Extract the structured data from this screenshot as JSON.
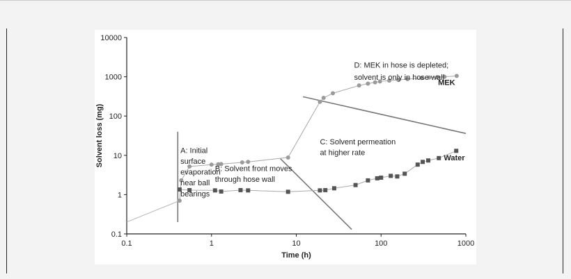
{
  "chart_data": {
    "type": "scatter",
    "title": "",
    "xlabel": "Time (h)",
    "ylabel": "Solvent loss (mg)",
    "xscale": "log",
    "yscale": "log",
    "xlim": [
      0.1,
      1000
    ],
    "ylim": [
      0.1,
      10000
    ],
    "x_ticks": [
      0.1,
      1,
      10,
      100,
      1000
    ],
    "x_tick_labels": [
      "0.1",
      "1",
      "10",
      "100",
      "1000"
    ],
    "y_ticks": [
      0.1,
      1,
      10,
      100,
      1000,
      10000
    ],
    "y_tick_labels": [
      "0.1",
      "1",
      "10",
      "100",
      "1000",
      "10000"
    ],
    "grid": false,
    "series": [
      {
        "name": "MEK",
        "marker": "circle",
        "color": "#9a9a9a",
        "line_color": "#a8a8a8",
        "points": [
          [
            0.42,
            0.7
          ],
          [
            0.44,
            2.3
          ],
          [
            0.55,
            5.2
          ],
          [
            1.0,
            5.8
          ],
          [
            1.2,
            5.9
          ],
          [
            1.3,
            6.0
          ],
          [
            2.3,
            6.6
          ],
          [
            2.7,
            6.8
          ],
          [
            8.0,
            8.8
          ],
          [
            19,
            230
          ],
          [
            21,
            290
          ],
          [
            27,
            380
          ],
          [
            55,
            600
          ],
          [
            70,
            670
          ],
          [
            85,
            720
          ],
          [
            97,
            760
          ],
          [
            125,
            800
          ],
          [
            160,
            830
          ],
          [
            205,
            870
          ],
          [
            300,
            930
          ],
          [
            370,
            960
          ],
          [
            460,
            980
          ],
          [
            560,
            1000
          ],
          [
            780,
            1050
          ]
        ],
        "label": "MEK"
      },
      {
        "name": "Water",
        "marker": "square",
        "color": "#555555",
        "line_color": "#aaaaaa",
        "points": [
          [
            0.42,
            1.35
          ],
          [
            0.55,
            1.3
          ],
          [
            1.1,
            1.28
          ],
          [
            1.3,
            1.2
          ],
          [
            2.2,
            1.3
          ],
          [
            2.7,
            1.28
          ],
          [
            8.0,
            1.18
          ],
          [
            19,
            1.28
          ],
          [
            22,
            1.3
          ],
          [
            28,
            1.45
          ],
          [
            50,
            1.75
          ],
          [
            70,
            2.3
          ],
          [
            90,
            2.6
          ],
          [
            100,
            2.7
          ],
          [
            130,
            3.0
          ],
          [
            155,
            2.9
          ],
          [
            190,
            3.4
          ],
          [
            270,
            5.8
          ],
          [
            310,
            6.8
          ],
          [
            360,
            7.4
          ],
          [
            480,
            8.5
          ],
          [
            770,
            13
          ]
        ],
        "label": "Water"
      }
    ],
    "annotations": [
      {
        "id": "A",
        "lines": [
          "A: Initial",
          "surface",
          "evaporation",
          "near ball",
          "bearings"
        ]
      },
      {
        "id": "B",
        "lines": [
          "B: Solvent front moves",
          "through hose wall"
        ]
      },
      {
        "id": "C",
        "lines": [
          "C: Solvent permeation",
          "at higher rate"
        ]
      },
      {
        "id": "D",
        "lines": [
          "D: MEK in  hose is depleted;",
          "solvent is only in hose wall"
        ]
      }
    ],
    "early_trend": [
      [
        0.1,
        0.2
      ],
      [
        0.42,
        0.7
      ]
    ],
    "guide_lines": [
      {
        "name": "vertical-guide",
        "from": [
          0.4,
          40
        ],
        "to": [
          0.4,
          0.2
        ]
      },
      {
        "name": "diagonal-guide-c",
        "from": [
          6.5,
          8.2
        ],
        "to": [
          45,
          0.13
        ]
      },
      {
        "name": "diagonal-guide-d",
        "from": [
          12,
          310
        ],
        "to": [
          1000,
          36
        ]
      }
    ]
  }
}
